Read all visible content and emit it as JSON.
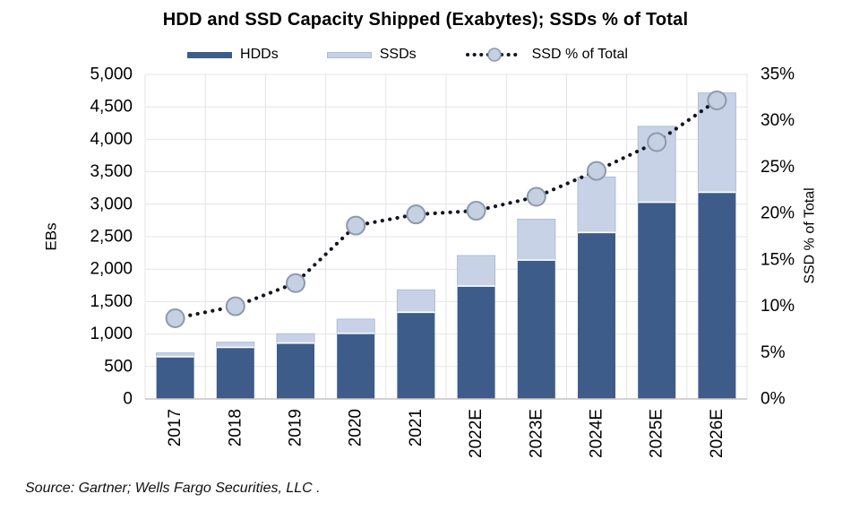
{
  "title": "HDD and SSD Capacity Shipped (Exabytes); SSDs % of Total",
  "legend": {
    "hdd_label": "HDDs",
    "ssd_label": "SSDs",
    "pct_label": "SSD % of Total"
  },
  "source_note": "Source: Gartner; Wells Fargo Securities, LLC .",
  "colors": {
    "hdd": "#3E5C8A",
    "ssd": "#C7D2E6",
    "ssd_border": "#AFBDD4",
    "marker_fill": "#C5D0E3",
    "marker_stroke": "#8D9AAC",
    "dotted_line": "#15151F",
    "grid": "#E4E4E4",
    "axis_line": "#C3C3C3",
    "text": "#000000"
  },
  "chart_data": {
    "type": "combo: stacked bar (left axis) + dotted line with circle markers (right axis)",
    "title": "HDD and SSD Capacity Shipped (Exabytes); SSDs % of Total",
    "categories": [
      "2017",
      "2018",
      "2019",
      "2020",
      "2021",
      "2022E",
      "2023E",
      "2024E",
      "2025E",
      "2026E"
    ],
    "series": [
      {
        "name": "HDDs",
        "chart": "stacked-bar",
        "axis": "left",
        "unit": "EB",
        "values": [
          650,
          795,
          860,
          1010,
          1335,
          1740,
          2140,
          2565,
          3030,
          3185
        ]
      },
      {
        "name": "SSDs",
        "chart": "stacked-bar",
        "axis": "left",
        "unit": "EB",
        "values": [
          60,
          80,
          145,
          220,
          345,
          470,
          630,
          855,
          1170,
          1530
        ]
      },
      {
        "name": "SSD % of Total",
        "chart": "dotted-line-with-markers",
        "axis": "right",
        "unit": "%",
        "values": [
          8.7,
          10.0,
          12.5,
          18.7,
          19.9,
          20.3,
          21.8,
          24.6,
          27.7,
          32.2
        ]
      }
    ],
    "left_axis": {
      "title": "EBs",
      "min": 0,
      "max": 5000,
      "step": 500,
      "tick_labels": [
        "0",
        "500",
        "1,000",
        "1,500",
        "2,000",
        "2,500",
        "3,000",
        "3,500",
        "4,000",
        "4,500",
        "5,000"
      ]
    },
    "right_axis": {
      "title": "SSD % of Total",
      "min": 0,
      "max": 35,
      "step": 5,
      "tick_labels": [
        "0%",
        "5%",
        "10%",
        "15%",
        "20%",
        "25%",
        "30%",
        "35%"
      ]
    },
    "grid": "horizontal + vertical light gray gridlines",
    "legend_position": "top center"
  }
}
